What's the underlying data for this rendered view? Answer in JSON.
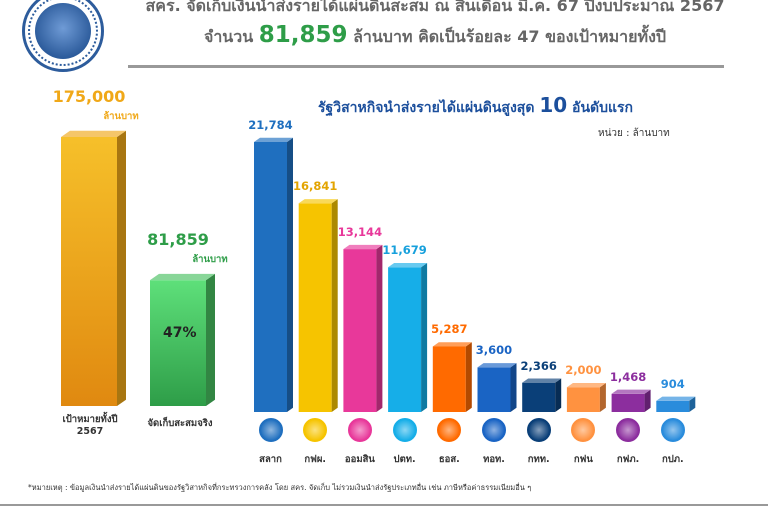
{
  "header": {
    "line1": "สคร. จัดเก็บเงินนำส่งรายได้แผ่นดินสะสม ณ สิ้นเดือน มี.ค. 67 ปีงบประมาณ 2567",
    "line2_prefix": "จำนวน",
    "line2_amount": "81,859",
    "line2_suffix": "ล้านบาท คิดเป็นร้อยละ 47 ของเป้าหมายทั้งปี"
  },
  "colors": {
    "target": "#f0a818",
    "actual": "#48c060",
    "accent_blue": "#1c4f9c",
    "title_green": "#2e9d48"
  },
  "chart_data": [
    {
      "type": "bar",
      "categories": [
        "เป้าหมายทั้งปี 2567",
        "จัดเก็บสะสมจริง"
      ],
      "values": [
        175000,
        81859
      ],
      "value_labels": [
        "175,000",
        "81,859"
      ],
      "unit_label": "ล้านบาท",
      "percent_label": "47%"
    },
    {
      "type": "bar",
      "title": "รัฐวิสาหกิจนำส่งรายได้แผ่นดินสูงสุด 10 อันดับแรก",
      "title_prefix": "รัฐวิสาหกิจนำส่งรายได้แผ่นดินสูงสุด",
      "title_number": "10",
      "title_suffix": "อันดับแรก",
      "unit": "หน่วย : ล้านบาท",
      "categories": [
        "สลาก",
        "กฟผ.",
        "ออมสิน",
        "ปตท.",
        "ธอส.",
        "ทอท.",
        "กทท.",
        "กฟน",
        "กฟภ.",
        "กปภ."
      ],
      "values": [
        21784,
        16841,
        13144,
        11679,
        5287,
        3600,
        2366,
        2000,
        1468,
        904
      ],
      "value_labels": [
        "21,784",
        "16,841",
        "13,144",
        "11,679",
        "5,287",
        "3,600",
        "2,366",
        "2,000",
        "1,468",
        "904"
      ],
      "colors": [
        "#1f6fbf",
        "#f6c400",
        "#e8389a",
        "#16aee8",
        "#ff6a00",
        "#1a64c4",
        "#0a3f78",
        "#ff9240",
        "#8c2e9e",
        "#2a8cdc"
      ],
      "label_colors": [
        "#1f6fbf",
        "#e3a400",
        "#e8389a",
        "#16a0dc",
        "#ff6a00",
        "#1a64c4",
        "#0a3f78",
        "#ff9240",
        "#8c2e9e",
        "#2a8cdc"
      ],
      "icon_names": [
        "lottery-office-icon",
        "egat-icon",
        "gsb-icon",
        "ptt-icon",
        "ghb-icon",
        "aot-icon",
        "port-authority-icon",
        "mea-icon",
        "pea-icon",
        "pwa-icon"
      ]
    }
  ],
  "footnote": "*หมายเหตุ : ข้อมูลเงินนำส่งรายได้แผ่นดินของรัฐวิสาหกิจที่กระทรวงการคลัง โดย สคร. จัดเก็บ ไม่รวมเงินนำส่งรัฐประเภทอื่น เช่น ภาษีหรือค่าธรรมเนียมอื่น ๆ"
}
